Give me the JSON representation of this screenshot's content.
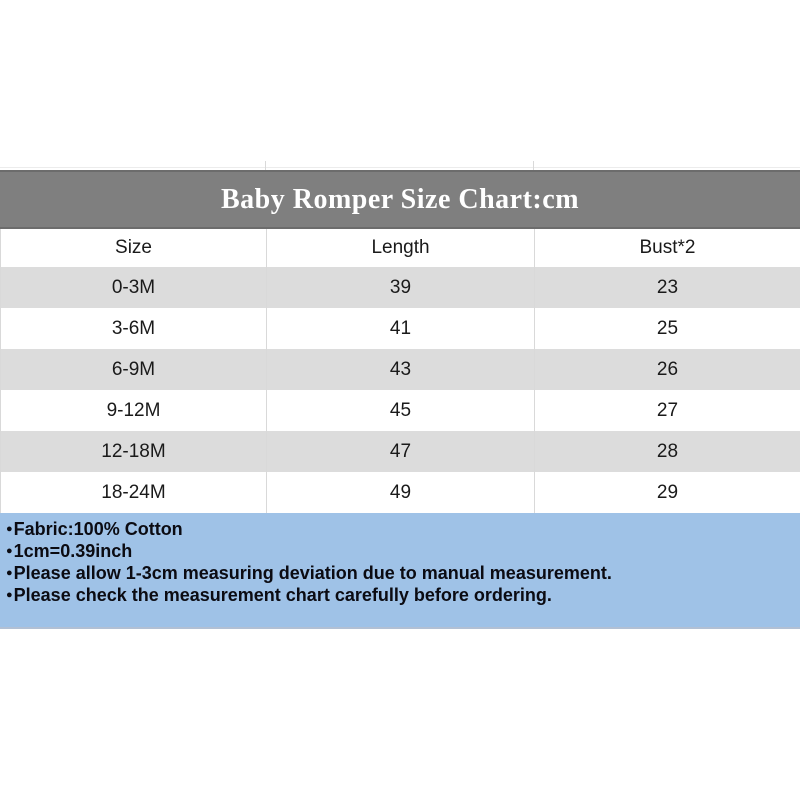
{
  "banner": {
    "title": "Baby Romper Size Chart:cm",
    "background": "#7f7f7f",
    "text_color": "#ffffff"
  },
  "chart_data": {
    "type": "table",
    "title": "Baby Romper Size Chart:cm",
    "unit": "cm",
    "columns": [
      "Size",
      "Length",
      "Bust*2"
    ],
    "rows": [
      [
        "0-3M",
        "39",
        "23"
      ],
      [
        "3-6M",
        "41",
        "25"
      ],
      [
        "6-9M",
        "43",
        "26"
      ],
      [
        "9-12M",
        "45",
        "27"
      ],
      [
        "12-18M",
        "47",
        "28"
      ],
      [
        "18-24M",
        "49",
        "29"
      ]
    ],
    "row_stripe_colors": [
      "#dcdcdc",
      "#ffffff"
    ],
    "grid_color": "#d9d9d9"
  },
  "notes": {
    "bullet": "●",
    "background": "#9fc2e7",
    "text_color": "#0b0b12",
    "lines": [
      "Fabric:100% Cotton",
      "1cm=0.39inch",
      "Please allow 1-3cm measuring deviation due to manual measurement.",
      "Please check the measurement chart carefully before ordering."
    ]
  }
}
